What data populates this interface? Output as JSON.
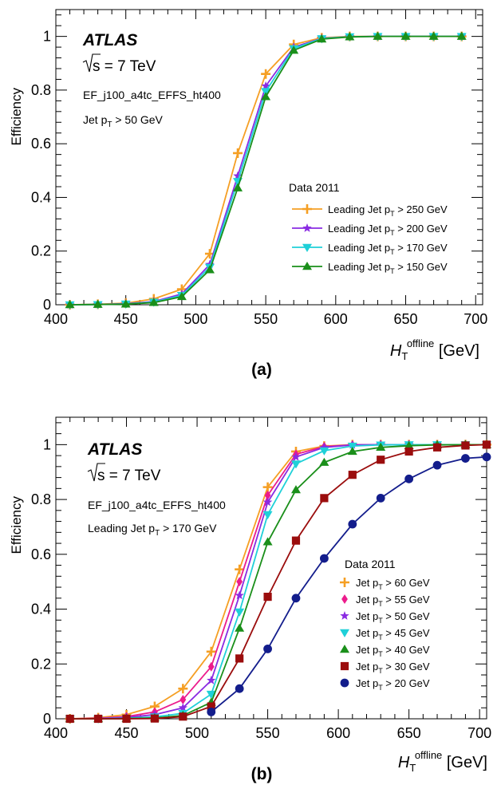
{
  "panels": [
    {
      "label": "(a)",
      "atlas": "ATLAS",
      "energy": "s = 7 TeV",
      "trigger": "EF_j100_a4tc_EFFS_ht400",
      "selection": {
        "prefix": "Jet  p",
        "sub": "T",
        "suffix": " > 50 GeV"
      }
    },
    {
      "label": "(b)",
      "atlas": "ATLAS",
      "energy": "s = 7 TeV",
      "trigger": "EF_j100_a4tc_EFFS_ht400",
      "selection": {
        "prefix": "Leading Jet p",
        "sub": "T",
        "suffix": "  > 170 GeV"
      }
    }
  ],
  "chart_data": [
    {
      "type": "line",
      "ylabel": "Efficiency",
      "xlabel": {
        "main": "H",
        "sub": "T",
        "sup": "offline",
        "unit": " [GeV]"
      },
      "xlim": [
        400,
        705
      ],
      "ylim": [
        0,
        1.1
      ],
      "xticks": [
        400,
        450,
        500,
        550,
        600,
        650,
        700
      ],
      "xtick_labels": [
        "400",
        "450",
        "500",
        "550",
        "600",
        "650",
        "700"
      ],
      "yticks": [
        0,
        0.2,
        0.4,
        0.6,
        0.8,
        1
      ],
      "ytick_labels": [
        "0",
        "0.2",
        "0.4",
        "0.6",
        "0.8",
        "1"
      ],
      "grid": false,
      "legend_placement": "center-right",
      "legend_title": "Data 2011",
      "x": [
        410,
        430,
        450,
        470,
        490,
        510,
        530,
        550,
        570,
        590,
        610,
        630,
        650,
        670,
        690
      ],
      "series": [
        {
          "name": "Leading Jet p",
          "name_sub": "T",
          "name_suffix": " > 250 GeV",
          "color": "#f59f24",
          "marker": "plus",
          "values": [
            0.0,
            0.002,
            0.006,
            0.022,
            0.058,
            0.19,
            0.565,
            0.86,
            0.97,
            0.995,
            1.0,
            1.0,
            1.0,
            1.0,
            1.0
          ]
        },
        {
          "name": "Leading Jet p",
          "name_sub": "T",
          "name_suffix": " > 200 GeV",
          "color": "#8a2be2",
          "marker": "star",
          "values": [
            0.0,
            0.001,
            0.004,
            0.012,
            0.04,
            0.15,
            0.48,
            0.815,
            0.96,
            0.993,
            0.999,
            1.0,
            1.0,
            1.0,
            1.0
          ]
        },
        {
          "name": "Leading Jet p",
          "name_sub": "T",
          "name_suffix": " > 170 GeV",
          "color": "#1fd0d8",
          "marker": "tri-down",
          "values": [
            0.0,
            0.001,
            0.003,
            0.01,
            0.035,
            0.14,
            0.46,
            0.795,
            0.955,
            0.992,
            0.999,
            1.0,
            1.0,
            1.0,
            1.0
          ]
        },
        {
          "name": "Leading Jet p",
          "name_sub": "T",
          "name_suffix": " > 150 GeV",
          "color": "#1a8f1a",
          "marker": "tri-up",
          "values": [
            0.0,
            0.001,
            0.002,
            0.008,
            0.03,
            0.13,
            0.435,
            0.775,
            0.948,
            0.99,
            0.998,
            1.0,
            1.0,
            1.0,
            1.0
          ]
        }
      ]
    },
    {
      "type": "line",
      "ylabel": "Efficiency",
      "xlabel": {
        "main": "H",
        "sub": "T",
        "sup": "offline",
        "unit": " [GeV]"
      },
      "xlim": [
        400,
        705
      ],
      "ylim": [
        0,
        1.1
      ],
      "xticks": [
        400,
        450,
        500,
        550,
        600,
        650,
        700
      ],
      "xtick_labels": [
        "400",
        "450",
        "500",
        "550",
        "600",
        "650",
        "700"
      ],
      "yticks": [
        0,
        0.2,
        0.4,
        0.6,
        0.8,
        1
      ],
      "ytick_labels": [
        "0",
        "0.2",
        "0.4",
        "0.6",
        "0.8",
        "1"
      ],
      "grid": false,
      "legend_placement": "bottom-right",
      "legend_title": "Data 2011",
      "x": [
        410,
        430,
        450,
        470,
        490,
        510,
        530,
        550,
        570,
        590,
        610,
        630,
        650,
        670,
        690,
        705
      ],
      "series": [
        {
          "name": "Jet p",
          "name_sub": "T",
          "name_suffix": " > 60 GeV",
          "color": "#f59f24",
          "marker": "plus",
          "values": [
            0.0,
            0.004,
            0.015,
            0.045,
            0.11,
            0.245,
            0.545,
            0.845,
            0.975,
            0.995,
            1.0,
            1.0,
            1.0,
            1.0,
            1.0,
            1.0
          ]
        },
        {
          "name": "Jet p",
          "name_sub": "T",
          "name_suffix": " > 55 GeV",
          "color": "#ec1c8c",
          "marker": "diamond",
          "values": [
            0.0,
            0.002,
            0.008,
            0.025,
            0.07,
            0.19,
            0.5,
            0.815,
            0.965,
            0.993,
            0.999,
            1.0,
            1.0,
            1.0,
            1.0,
            1.0
          ]
        },
        {
          "name": "Jet p",
          "name_sub": "T",
          "name_suffix": " > 50 GeV",
          "color": "#8a2be2",
          "marker": "star",
          "values": [
            0.0,
            0.001,
            0.005,
            0.015,
            0.04,
            0.14,
            0.45,
            0.79,
            0.955,
            0.99,
            0.999,
            1.0,
            1.0,
            1.0,
            1.0,
            1.0
          ]
        },
        {
          "name": "Jet p",
          "name_sub": "T",
          "name_suffix": " > 45 GeV",
          "color": "#1fd0d8",
          "marker": "tri-down",
          "values": [
            0.0,
            0.0,
            0.002,
            0.007,
            0.02,
            0.09,
            0.39,
            0.745,
            0.93,
            0.978,
            0.995,
            0.999,
            1.0,
            1.0,
            1.0,
            1.0
          ]
        },
        {
          "name": "Jet p",
          "name_sub": "T",
          "name_suffix": " > 40 GeV",
          "color": "#1a8f1a",
          "marker": "tri-up",
          "values": [
            0.0,
            0.0,
            0.001,
            0.003,
            0.012,
            0.06,
            0.33,
            0.645,
            0.835,
            0.935,
            0.975,
            0.99,
            0.996,
            0.999,
            1.0,
            1.0
          ]
        },
        {
          "name": "Jet p",
          "name_sub": "T",
          "name_suffix": " > 30 GeV",
          "color": "#9b0d0d",
          "marker": "square",
          "values": [
            0.0,
            0.0,
            0.0,
            0.001,
            0.008,
            0.045,
            0.22,
            0.445,
            0.65,
            0.805,
            0.89,
            0.945,
            0.975,
            0.99,
            0.997,
            1.0
          ]
        },
        {
          "name": "Jet p",
          "name_sub": "T",
          "name_suffix": " > 20 GeV",
          "color": "#131d8c",
          "marker": "circle",
          "values": [
            null,
            null,
            null,
            null,
            null,
            0.025,
            0.11,
            0.255,
            0.44,
            0.585,
            0.71,
            0.805,
            0.875,
            0.925,
            0.95,
            0.955
          ]
        }
      ]
    }
  ]
}
